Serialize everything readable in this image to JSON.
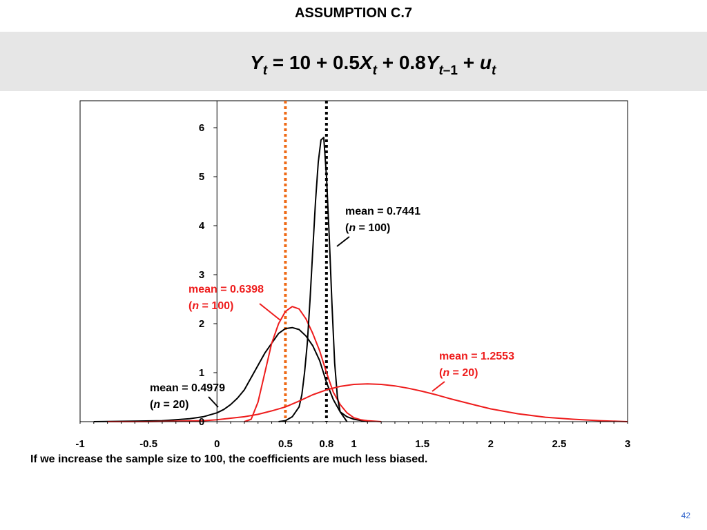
{
  "slide": {
    "title": "ASSUMPTION C.7",
    "equation": {
      "Y": "Y",
      "t": "t",
      "eq": " = 10 + 0.5",
      "X": "X",
      "plus": " + 0.8",
      "sub_minus_one": "–1",
      "plus_u": " + ",
      "u": "u"
    },
    "caption": "If we increase the sample size to 100, the coefficients are much less biased.",
    "page_number": "42"
  },
  "chart_data": {
    "type": "line",
    "x_ticks": [
      "-1",
      "-0.5",
      "0",
      "0.5",
      "0.8",
      "1",
      "1.5",
      "2",
      "2.5",
      "3"
    ],
    "x_tick_values": [
      -1,
      -0.5,
      0,
      0.5,
      0.8,
      1,
      1.5,
      2,
      2.5,
      3
    ],
    "y_ticks": [
      "0",
      "1",
      "2",
      "3",
      "4",
      "5",
      "6"
    ],
    "y_tick_values": [
      0,
      1,
      2,
      3,
      4,
      5,
      6
    ],
    "xlim": [
      -1,
      3
    ],
    "ylim": [
      0,
      6.55
    ],
    "grid": false,
    "reference_lines": [
      {
        "x": 0.5,
        "color": "#ee6a16",
        "style": "dotted"
      },
      {
        "x": 0.8,
        "color": "#000000",
        "style": "dotted"
      }
    ],
    "series": [
      {
        "color": "#000000",
        "x": [
          -0.9,
          -0.6,
          -0.4,
          -0.3,
          -0.2,
          -0.1,
          0.0,
          0.05,
          0.1,
          0.15,
          0.2,
          0.25,
          0.3,
          0.35,
          0.4,
          0.45,
          0.5,
          0.55,
          0.6,
          0.65,
          0.7,
          0.75,
          0.8,
          0.85,
          0.9,
          0.95,
          1.0,
          1.1
        ],
        "y": [
          0.0,
          0.01,
          0.02,
          0.04,
          0.06,
          0.1,
          0.18,
          0.25,
          0.35,
          0.48,
          0.65,
          0.9,
          1.15,
          1.4,
          1.6,
          1.8,
          1.9,
          1.92,
          1.88,
          1.75,
          1.55,
          1.25,
          0.8,
          0.45,
          0.2,
          0.1,
          0.05,
          0.0
        ]
      },
      {
        "color": "#ee1c1c",
        "x": [
          0.2,
          0.25,
          0.3,
          0.35,
          0.4,
          0.45,
          0.5,
          0.55,
          0.6,
          0.65,
          0.7,
          0.75,
          0.8,
          0.85,
          0.9,
          0.95,
          1.0,
          1.05,
          1.1,
          1.2
        ],
        "y": [
          0.0,
          0.05,
          0.4,
          1.0,
          1.6,
          2.0,
          2.25,
          2.35,
          2.3,
          2.1,
          1.8,
          1.45,
          1.0,
          0.6,
          0.35,
          0.18,
          0.08,
          0.04,
          0.02,
          0.0
        ]
      },
      {
        "color": "#000000",
        "x": [
          0.45,
          0.5,
          0.55,
          0.6,
          0.62,
          0.64,
          0.66,
          0.68,
          0.7,
          0.72,
          0.74,
          0.76,
          0.78,
          0.8,
          0.82,
          0.84,
          0.86,
          0.88,
          0.9,
          0.95
        ],
        "y": [
          0.0,
          0.02,
          0.1,
          0.3,
          0.55,
          1.0,
          1.6,
          2.5,
          3.5,
          4.5,
          5.3,
          5.75,
          5.8,
          5.0,
          3.8,
          2.4,
          1.2,
          0.5,
          0.2,
          0.0
        ]
      },
      {
        "color": "#ee1c1c",
        "x": [
          -0.8,
          -0.5,
          -0.3,
          -0.1,
          0.0,
          0.1,
          0.2,
          0.3,
          0.4,
          0.5,
          0.6,
          0.7,
          0.8,
          0.9,
          1.0,
          1.1,
          1.2,
          1.3,
          1.4,
          1.5,
          1.6,
          1.7,
          1.8,
          1.9,
          2.0,
          2.2,
          2.4,
          2.6,
          2.8,
          3.0
        ],
        "y": [
          0.0,
          0.0,
          0.01,
          0.02,
          0.04,
          0.07,
          0.1,
          0.15,
          0.22,
          0.3,
          0.42,
          0.55,
          0.65,
          0.72,
          0.76,
          0.77,
          0.76,
          0.73,
          0.68,
          0.62,
          0.55,
          0.47,
          0.4,
          0.33,
          0.26,
          0.16,
          0.09,
          0.05,
          0.02,
          0.0
        ]
      }
    ],
    "annotations": [
      {
        "line1": "mean = 0.7441",
        "n_text": "n",
        "line2_rest": " = 100)",
        "color": "#000000"
      },
      {
        "line1": "mean = 0.6398",
        "n_text": "n",
        "line2_rest": " = 100)",
        "color": "#ee1c1c"
      },
      {
        "line1": "mean = 1.2553",
        "n_text": "n",
        "line2_rest": " = 20)",
        "color": "#ee1c1c"
      },
      {
        "line1": "mean = 0.4979",
        "n_text": "n",
        "line2_rest": " = 20)",
        "color": "#000000"
      }
    ]
  }
}
